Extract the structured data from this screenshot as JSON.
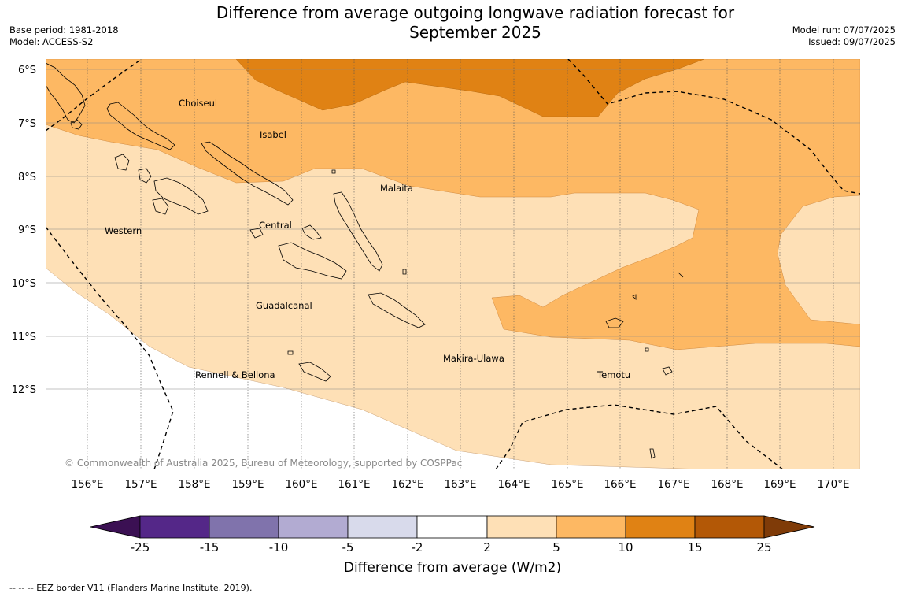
{
  "title_line1": "Difference from average outgoing longwave radiation forecast for",
  "title_line2": "September 2025",
  "meta_left": {
    "base_period": "Base period: 1981-2018",
    "model": "Model: ACCESS-S2"
  },
  "meta_right": {
    "model_run": "Model run: 07/07/2025",
    "issued": "Issued: 09/07/2025"
  },
  "latitudes": [
    "6°S",
    "7°S",
    "8°S",
    "9°S",
    "10°S",
    "11°S",
    "12°S"
  ],
  "longitudes": [
    "156°E",
    "157°E",
    "158°E",
    "159°E",
    "160°E",
    "161°E",
    "162°E",
    "163°E",
    "164°E",
    "165°E",
    "166°E",
    "167°E",
    "168°E",
    "169°E",
    "170°E"
  ],
  "regions": {
    "choiseul": "Choiseul",
    "isabel": "Isabel",
    "malaita": "Malaita",
    "western": "Western",
    "central": "Central",
    "guadalcanal": "Guadalcanal",
    "makira": "Makira-Ulawa",
    "rennell": "Rennell & Bellona",
    "temotu": "Temotu"
  },
  "copyright": "© Commonwealth of Australia 2025, Bureau of Meteorology, supported by COSPPac",
  "colorbar": {
    "title": "Difference from average (W/m2)",
    "ticks": [
      "-25",
      "-15",
      "-10",
      "-5",
      "-2",
      "2",
      "5",
      "10",
      "15",
      "25"
    ],
    "colors": [
      "#3b1053",
      "#542788",
      "#8073ac",
      "#b2abd2",
      "#d8daeb",
      "#ffffff",
      "#fee0b6",
      "#fdb863",
      "#e08214",
      "#b35806",
      "#7f3b08"
    ]
  },
  "footnote": "--  --  -- EEZ border V11 (Flanders Marine Institute, 2019)."
}
